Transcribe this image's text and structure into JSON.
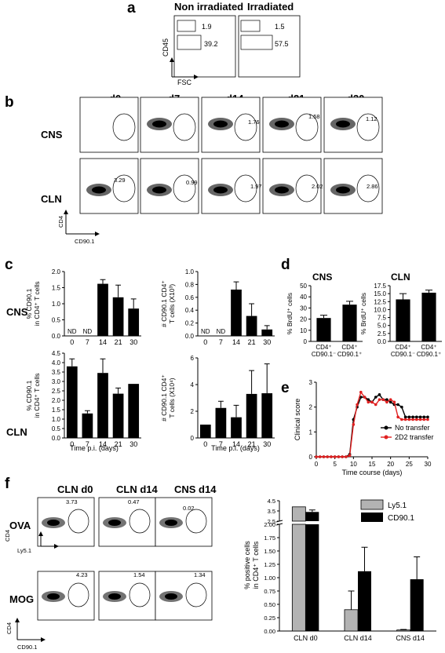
{
  "panel_labels": {
    "a": "a",
    "b": "b",
    "c": "c",
    "d": "d",
    "e": "e",
    "f": "f"
  },
  "panel_a": {
    "columns": [
      "Non irradiated",
      "Irradiated"
    ],
    "y_label": "CD45",
    "x_label": "FSC",
    "gate_values": [
      [
        "1.9",
        "39.2"
      ],
      [
        "1.5",
        "57.5"
      ]
    ]
  },
  "panel_b": {
    "timepoints": [
      "d0",
      "d7",
      "d14",
      "d21",
      "d30"
    ],
    "rows": [
      "CNS",
      "CLN"
    ],
    "cns_values": [
      "",
      "",
      "1.76",
      "1.58",
      "1.12"
    ],
    "cln_values": [
      "3.29",
      "0.99",
      "1.97",
      "2.02",
      "2.86"
    ],
    "y_label": "CD4",
    "x_label": "CD90.1"
  },
  "panel_c": {
    "row_labels": [
      "CNS",
      "CLN"
    ],
    "xlabel": "Time p.i. (days)",
    "nd_label": "ND"
  },
  "panel_d": {
    "ylabel": "% BrdU⁺ cells",
    "categories": [
      "CD4⁺ CD90.1⁻",
      "CD4⁺ CD90.1⁺"
    ]
  },
  "panel_e": {
    "ylabel": "Clinical score",
    "xlabel": "Time course (days)",
    "legend": [
      "No transfer",
      "2D2 transfer"
    ]
  },
  "panel_f": {
    "columns": [
      "CLN d0",
      "CLN d14",
      "CNS d14"
    ],
    "rows": [
      "OVA",
      "MOG"
    ],
    "ova_values": [
      "3.73",
      "0.47",
      "0.02"
    ],
    "mog_values": [
      "4.23",
      "1.54",
      "1.34"
    ],
    "ova_x_label": "Ly5.1",
    "mog_x_label": "CD90.1",
    "y_label": "CD4"
  },
  "chart_data": [
    {
      "type": "bar",
      "panel": "c",
      "row": "CNS",
      "ylabel": "% CD90.1 in CD4⁺ T cells",
      "categories": [
        "0",
        "7",
        "14",
        "21",
        "30"
      ],
      "values": [
        null,
        null,
        1.62,
        1.2,
        0.85
      ],
      "errors": [
        null,
        null,
        0.13,
        0.38,
        0.3
      ],
      "ylim": [
        0,
        2.0
      ],
      "yticks": [
        "0.0",
        "0.5",
        "1.0",
        "1.5",
        "2.0"
      ],
      "annotations": [
        "ND",
        "ND"
      ]
    },
    {
      "type": "bar",
      "panel": "c",
      "row": "CNS",
      "ylabel": "# CD90.1 CD4⁺ T cells (X10³)",
      "categories": [
        "0",
        "7",
        "14",
        "21",
        "30"
      ],
      "values": [
        null,
        null,
        0.72,
        0.31,
        0.1
      ],
      "errors": [
        null,
        null,
        0.12,
        0.19,
        0.06
      ],
      "ylim": [
        0,
        1.0
      ],
      "yticks": [
        "0.0",
        "0.2",
        "0.4",
        "0.6",
        "0.8",
        "1.0"
      ],
      "annotations": [
        "ND",
        "ND"
      ]
    },
    {
      "type": "bar",
      "panel": "c",
      "row": "CLN",
      "ylabel": "% CD90.1 in CD4⁺ T cells",
      "categories": [
        "0",
        "7",
        "14",
        "21",
        "30"
      ],
      "values": [
        3.8,
        1.3,
        3.45,
        2.35,
        2.87
      ],
      "errors": [
        0.4,
        0.15,
        0.75,
        0.3,
        0
      ],
      "ylim": [
        0,
        4.5
      ],
      "yticks": [
        "0.0",
        "0.5",
        "1.0",
        "1.5",
        "2.0",
        "2.5",
        "3.0",
        "3.5",
        "4.0",
        "4.5"
      ],
      "xlabel": "Time p.i. (days)"
    },
    {
      "type": "bar",
      "panel": "c",
      "row": "CLN",
      "ylabel": "# CD90.1 CD4⁺ T cells (X10⁴)",
      "categories": [
        "0",
        "7",
        "14",
        "21",
        "30"
      ],
      "values": [
        1.0,
        2.25,
        1.55,
        3.3,
        3.35
      ],
      "errors": [
        0,
        0.5,
        0.9,
        1.75,
        2.2
      ],
      "ylim": [
        0,
        6
      ],
      "yticks": [
        "0",
        "2",
        "4",
        "6"
      ],
      "xlabel": "Time p.i. (days)"
    },
    {
      "type": "bar",
      "panel": "d",
      "title": "CNS",
      "ylabel": "% BrdU⁺ cells",
      "categories": [
        "CD4⁺ CD90.1⁻",
        "CD4⁺ CD90.1⁺"
      ],
      "values": [
        21,
        33
      ],
      "errors": [
        2.5,
        3
      ],
      "ylim": [
        0,
        50
      ],
      "yticks": [
        "0",
        "10",
        "20",
        "30",
        "40",
        "50"
      ]
    },
    {
      "type": "bar",
      "panel": "d",
      "title": "CLN",
      "ylabel": "% BrdU⁺ cells",
      "categories": [
        "CD4⁺ CD90.1⁻",
        "CD4⁺ CD90.1⁺"
      ],
      "values": [
        13.2,
        15.3
      ],
      "errors": [
        1.8,
        0.8
      ],
      "ylim": [
        0,
        17.5
      ],
      "yticks": [
        "0.0",
        "2.5",
        "5.0",
        "7.5",
        "10.0",
        "12.5",
        "15.0",
        "17.5"
      ]
    },
    {
      "type": "line",
      "panel": "e",
      "ylabel": "Clinical score",
      "xlabel": "Time course (days)",
      "xlim": [
        0,
        30
      ],
      "ylim": [
        0,
        3
      ],
      "xticks": [
        "0",
        "5",
        "10",
        "15",
        "20",
        "25",
        "30"
      ],
      "yticks": [
        "0",
        "1",
        "2",
        "3"
      ],
      "series": [
        {
          "name": "No transfer",
          "color": "#000000",
          "x": [
            0,
            1,
            2,
            3,
            4,
            5,
            6,
            7,
            8,
            9,
            10,
            11,
            12,
            13,
            14,
            15,
            16,
            17,
            18,
            19,
            20,
            21,
            22,
            23,
            24,
            25,
            26,
            27,
            28,
            29,
            30
          ],
          "y": [
            0,
            0,
            0,
            0,
            0,
            0,
            0,
            0,
            0,
            0.1,
            1.5,
            2.0,
            2.4,
            2.4,
            2.3,
            2.2,
            2.4,
            2.5,
            2.3,
            2.3,
            2.2,
            2.1,
            2.1,
            2.0,
            1.6,
            1.6,
            1.6,
            1.6,
            1.6,
            1.6,
            1.6
          ]
        },
        {
          "name": "2D2 transfer",
          "color": "#e02020",
          "x": [
            0,
            1,
            2,
            3,
            4,
            5,
            6,
            7,
            8,
            9,
            10,
            11,
            12,
            13,
            14,
            15,
            16,
            17,
            18,
            19,
            20,
            21,
            22,
            23,
            24,
            25,
            26,
            27,
            28,
            29,
            30
          ],
          "y": [
            0,
            0,
            0,
            0,
            0,
            0,
            0,
            0,
            0,
            0.05,
            1.3,
            2.1,
            2.6,
            2.4,
            2.2,
            2.2,
            2.1,
            2.3,
            2.3,
            2.2,
            2.3,
            2.2,
            1.6,
            1.5,
            1.5,
            1.5,
            1.5,
            1.5,
            1.5,
            1.5,
            1.5
          ]
        }
      ]
    },
    {
      "type": "bar",
      "panel": "f",
      "ylabel": "% positive cells in CD4⁺ T cells",
      "categories": [
        "CLN d0",
        "CLN d14",
        "CNS d14"
      ],
      "series": [
        {
          "name": "Ly5.1",
          "color": "#b3b3b3",
          "values": [
            3.9,
            0.4,
            0.02
          ],
          "errors": [
            0,
            0.35,
            0.01
          ]
        },
        {
          "name": "CD90.1",
          "color": "#000000",
          "values": [
            3.4,
            1.12,
            0.97
          ],
          "errors": [
            0.2,
            0.45,
            0.42
          ]
        }
      ],
      "yticks": [
        "0.00",
        "0.25",
        "0.50",
        "0.75",
        "1.00",
        "1.25",
        "1.50",
        "1.75",
        "2.00",
        "2.5",
        "3.5",
        "4.5"
      ],
      "axis_break": true
    }
  ]
}
